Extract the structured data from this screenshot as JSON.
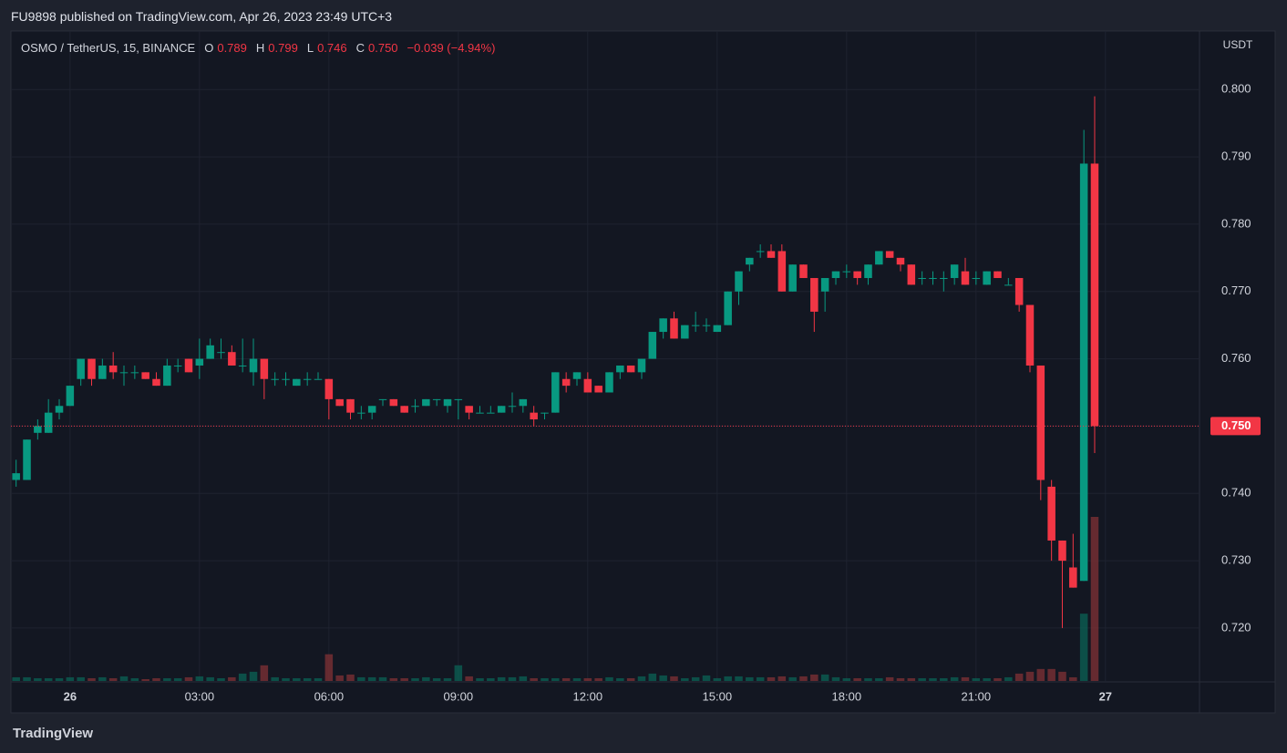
{
  "header": "FU9898 published on TradingView.com, Apr 26, 2023 23:49 UTC+3",
  "footer": "TradingView",
  "chart_data": {
    "type": "candlestick",
    "symbol": "OSMO / TetherUS, 15, BINANCE",
    "legend": {
      "o_label": "O",
      "open": {
        "value": 0.789,
        "label": "0.789"
      },
      "h_label": "H",
      "high": {
        "value": 0.799,
        "label": "0.799"
      },
      "l_label": "L",
      "low": {
        "value": 0.746,
        "label": "0.746"
      },
      "c_label": "C",
      "close": {
        "value": 0.75,
        "label": "0.750"
      },
      "change": "−0.039 (−4.94%)"
    },
    "y_unit": "USDT",
    "up_color": "#089981",
    "down_color": "#f23645",
    "grid": true,
    "last_price": {
      "value": 0.75,
      "label": "0.750"
    },
    "x": [
      -1.25,
      -1,
      -0.75,
      -0.5,
      -0.25,
      0,
      0.25,
      0.5,
      0.75,
      1,
      1.25,
      1.5,
      1.75,
      2,
      2.25,
      2.5,
      2.75,
      3,
      3.25,
      3.5,
      3.75,
      4,
      4.25,
      4.5,
      4.75,
      5,
      5.25,
      5.5,
      5.75,
      6,
      6.25,
      6.5,
      6.75,
      7,
      7.25,
      7.5,
      7.75,
      8,
      8.25,
      8.5,
      8.75,
      9,
      9.25,
      9.5,
      9.75,
      10,
      10.25,
      10.5,
      10.75,
      11,
      11.25,
      11.5,
      11.75,
      12,
      12.25,
      12.5,
      12.75,
      13,
      13.25,
      13.5,
      13.75,
      14,
      14.25,
      14.5,
      14.75,
      15,
      15.25,
      15.5,
      15.75,
      16,
      16.25,
      16.5,
      16.75,
      17,
      17.25,
      17.5,
      17.75,
      18,
      18.25,
      18.5,
      18.75,
      19,
      19.25,
      19.5,
      19.75,
      20,
      20.25,
      20.5,
      20.75,
      21,
      21.25,
      21.5,
      21.75,
      22,
      22.25,
      22.5,
      22.75,
      23,
      23.25,
      23.5,
      23.75
    ],
    "open": [
      0.742,
      0.742,
      0.749,
      0.749,
      0.752,
      0.753,
      0.757,
      0.76,
      0.757,
      0.759,
      0.758,
      0.758,
      0.758,
      0.757,
      0.756,
      0.759,
      0.76,
      0.759,
      0.76,
      0.761,
      0.761,
      0.759,
      0.758,
      0.76,
      0.757,
      0.757,
      0.756,
      0.757,
      0.757,
      0.757,
      0.754,
      0.754,
      0.752,
      0.752,
      0.754,
      0.754,
      0.753,
      0.753,
      0.753,
      0.754,
      0.753,
      0.754,
      0.753,
      0.752,
      0.752,
      0.752,
      0.753,
      0.753,
      0.752,
      0.752,
      0.752,
      0.757,
      0.757,
      0.757,
      0.756,
      0.755,
      0.758,
      0.759,
      0.758,
      0.76,
      0.764,
      0.766,
      0.763,
      0.765,
      0.765,
      0.764,
      0.765,
      0.77,
      0.774,
      0.776,
      0.776,
      0.776,
      0.77,
      0.774,
      0.772,
      0.77,
      0.772,
      0.773,
      0.773,
      0.772,
      0.774,
      0.776,
      0.775,
      0.774,
      0.772,
      0.772,
      0.772,
      0.772,
      0.773,
      0.772,
      0.771,
      0.773,
      0.771,
      0.772,
      0.768,
      0.759,
      0.741,
      0.733,
      0.729,
      0.727,
      0.789
    ],
    "high": [
      0.745,
      0.748,
      0.751,
      0.754,
      0.754,
      0.756,
      0.76,
      0.76,
      0.76,
      0.761,
      0.759,
      0.759,
      0.758,
      0.758,
      0.76,
      0.76,
      0.76,
      0.763,
      0.763,
      0.763,
      0.762,
      0.763,
      0.763,
      0.76,
      0.758,
      0.758,
      0.757,
      0.758,
      0.758,
      0.757,
      0.754,
      0.754,
      0.753,
      0.753,
      0.754,
      0.754,
      0.753,
      0.754,
      0.754,
      0.754,
      0.754,
      0.754,
      0.753,
      0.753,
      0.753,
      0.753,
      0.755,
      0.754,
      0.753,
      0.752,
      0.758,
      0.758,
      0.758,
      0.758,
      0.756,
      0.758,
      0.759,
      0.759,
      0.76,
      0.764,
      0.766,
      0.767,
      0.765,
      0.767,
      0.766,
      0.765,
      0.77,
      0.773,
      0.775,
      0.777,
      0.777,
      0.777,
      0.774,
      0.774,
      0.772,
      0.772,
      0.773,
      0.774,
      0.773,
      0.774,
      0.776,
      0.776,
      0.775,
      0.774,
      0.773,
      0.773,
      0.773,
      0.774,
      0.775,
      0.773,
      0.773,
      0.773,
      0.772,
      0.772,
      0.768,
      0.759,
      0.742,
      0.733,
      0.734,
      0.794,
      0.799
    ],
    "low": [
      0.741,
      0.742,
      0.748,
      0.749,
      0.751,
      0.753,
      0.756,
      0.756,
      0.757,
      0.757,
      0.756,
      0.757,
      0.757,
      0.756,
      0.756,
      0.758,
      0.758,
      0.757,
      0.76,
      0.76,
      0.759,
      0.758,
      0.756,
      0.754,
      0.756,
      0.756,
      0.756,
      0.756,
      0.757,
      0.751,
      0.753,
      0.751,
      0.751,
      0.751,
      0.753,
      0.753,
      0.752,
      0.752,
      0.753,
      0.753,
      0.752,
      0.751,
      0.751,
      0.752,
      0.752,
      0.752,
      0.752,
      0.752,
      0.75,
      0.751,
      0.752,
      0.755,
      0.756,
      0.755,
      0.755,
      0.755,
      0.757,
      0.758,
      0.757,
      0.76,
      0.763,
      0.763,
      0.763,
      0.764,
      0.764,
      0.764,
      0.765,
      0.768,
      0.773,
      0.775,
      0.775,
      0.77,
      0.77,
      0.772,
      0.764,
      0.767,
      0.771,
      0.772,
      0.771,
      0.771,
      0.774,
      0.775,
      0.773,
      0.771,
      0.771,
      0.771,
      0.77,
      0.771,
      0.771,
      0.771,
      0.771,
      0.772,
      0.771,
      0.767,
      0.758,
      0.739,
      0.73,
      0.72,
      0.726,
      0.727,
      0.746
    ],
    "close": [
      0.743,
      0.748,
      0.75,
      0.752,
      0.753,
      0.756,
      0.76,
      0.757,
      0.759,
      0.758,
      0.758,
      0.758,
      0.757,
      0.756,
      0.759,
      0.759,
      0.758,
      0.76,
      0.762,
      0.761,
      0.759,
      0.759,
      0.76,
      0.757,
      0.757,
      0.757,
      0.757,
      0.757,
      0.757,
      0.754,
      0.753,
      0.752,
      0.752,
      0.753,
      0.754,
      0.753,
      0.752,
      0.753,
      0.754,
      0.754,
      0.754,
      0.754,
      0.752,
      0.752,
      0.752,
      0.753,
      0.753,
      0.754,
      0.751,
      0.752,
      0.758,
      0.756,
      0.758,
      0.755,
      0.755,
      0.758,
      0.759,
      0.758,
      0.76,
      0.764,
      0.766,
      0.763,
      0.765,
      0.765,
      0.765,
      0.765,
      0.77,
      0.773,
      0.775,
      0.776,
      0.775,
      0.77,
      0.774,
      0.772,
      0.767,
      0.772,
      0.773,
      0.773,
      0.772,
      0.774,
      0.776,
      0.775,
      0.774,
      0.771,
      0.772,
      0.772,
      0.772,
      0.774,
      0.771,
      0.772,
      0.773,
      0.772,
      0.771,
      0.768,
      0.759,
      0.742,
      0.733,
      0.73,
      0.726,
      0.789,
      0.75
    ],
    "volume": [
      4,
      4,
      3,
      3,
      3,
      4,
      4,
      3,
      4,
      3,
      5,
      3,
      2,
      3,
      3,
      3,
      4,
      5,
      4,
      3,
      4,
      8,
      10,
      17,
      4,
      3,
      3,
      3,
      3,
      29,
      6,
      7,
      4,
      4,
      4,
      3,
      3,
      3,
      4,
      3,
      3,
      17,
      5,
      3,
      3,
      4,
      4,
      5,
      3,
      3,
      3,
      3,
      3,
      3,
      3,
      4,
      3,
      3,
      5,
      8,
      6,
      5,
      3,
      4,
      6,
      3,
      5,
      5,
      4,
      4,
      4,
      5,
      4,
      5,
      7,
      7,
      4,
      3,
      3,
      3,
      3,
      4,
      3,
      3,
      3,
      3,
      3,
      4,
      4,
      3,
      3,
      3,
      4,
      8,
      10,
      13,
      13,
      10,
      4,
      73,
      178
    ],
    "xlim": [
      -1.37,
      26.18
    ],
    "xticks": [
      {
        "value": 0,
        "label": "26"
      },
      {
        "value": 3,
        "label": "03:00"
      },
      {
        "value": 6,
        "label": "06:00"
      },
      {
        "value": 9,
        "label": "09:00"
      },
      {
        "value": 12,
        "label": "12:00"
      },
      {
        "value": 15,
        "label": "15:00"
      },
      {
        "value": 18,
        "label": "18:00"
      },
      {
        "value": 21,
        "label": "21:00"
      },
      {
        "value": 24,
        "label": "27"
      }
    ],
    "ylim": [
      0.712,
      0.8087
    ],
    "yticks": [
      {
        "value": 0.72,
        "label": "0.720"
      },
      {
        "value": 0.73,
        "label": "0.730"
      },
      {
        "value": 0.74,
        "label": "0.740"
      },
      {
        "value": 0.75,
        "label": "0.750"
      },
      {
        "value": 0.76,
        "label": "0.760"
      },
      {
        "value": 0.77,
        "label": "0.770"
      },
      {
        "value": 0.78,
        "label": "0.780"
      },
      {
        "value": 0.79,
        "label": "0.790"
      },
      {
        "value": 0.8,
        "label": "0.800"
      }
    ]
  }
}
